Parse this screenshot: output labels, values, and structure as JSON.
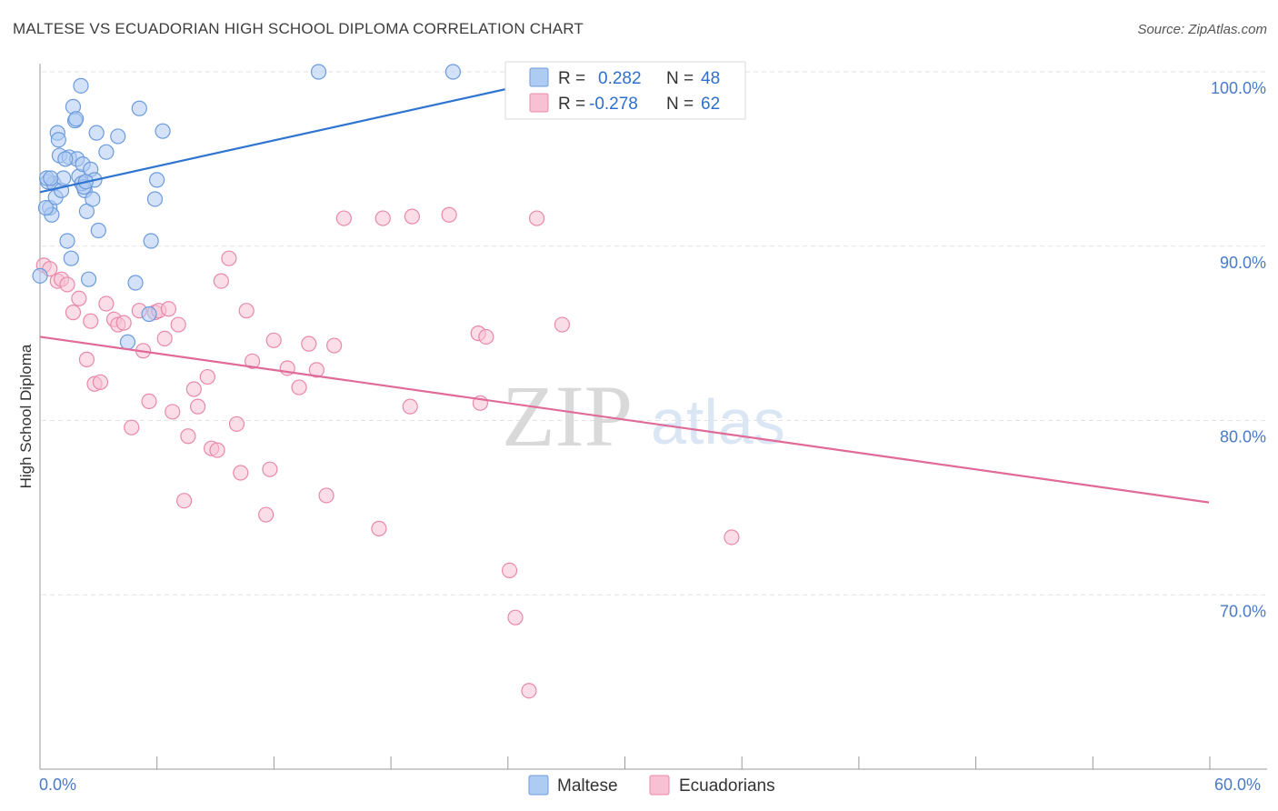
{
  "header": {
    "title": "MALTESE VS ECUADORIAN HIGH SCHOOL DIPLOMA CORRELATION CHART",
    "source": "Source: ZipAtlas.com"
  },
  "colors": {
    "maltese_fill": "#aecbf2",
    "maltese_stroke": "#6c9bdc",
    "maltese_line": "#2f74d0",
    "ecuadorian_fill": "#f7c1d3",
    "ecuadorian_stroke": "#e889a9",
    "ecuadorian_line": "#e06a98",
    "tick_label": "#4a7ac8"
  },
  "watermark": {
    "zip": "ZIP",
    "atlas": "atlas"
  },
  "chart_data": {
    "type": "scatter",
    "title": "MALTESE VS ECUADORIAN HIGH SCHOOL DIPLOMA CORRELATION CHART",
    "xlabel": "",
    "ylabel": "High School Diploma",
    "xlim": [
      0,
      60
    ],
    "ylim": [
      60,
      100
    ],
    "x_tick_labels": [
      "0.0%",
      "60.0%"
    ],
    "y_ticks": [
      {
        "value": 100,
        "label": "100.0%"
      },
      {
        "value": 90,
        "label": "90.0%"
      },
      {
        "value": 80,
        "label": "80.0%"
      },
      {
        "value": 70,
        "label": "70.0%"
      }
    ],
    "grid": true,
    "legend": [
      {
        "series": "Maltese",
        "r_label": "R =",
        "r": "0.282",
        "n_label": "N =",
        "n": "48"
      },
      {
        "series": "Ecuadorians",
        "r_label": "R =",
        "r": "-0.278",
        "n_label": "N =",
        "n": "62"
      }
    ],
    "series": [
      {
        "name": "Maltese",
        "trend": {
          "x0": 0.0,
          "y0": 93.1,
          "x1": 25.5,
          "y1": 99.4
        },
        "points": [
          [
            0.0,
            88.3
          ],
          [
            0.4,
            93.7
          ],
          [
            0.5,
            92.2
          ],
          [
            0.6,
            91.8
          ],
          [
            0.7,
            93.6
          ],
          [
            0.8,
            92.8
          ],
          [
            0.9,
            96.5
          ],
          [
            0.95,
            96.1
          ],
          [
            1.0,
            95.2
          ],
          [
            1.1,
            93.2
          ],
          [
            1.2,
            93.9
          ],
          [
            1.4,
            90.3
          ],
          [
            1.5,
            95.1
          ],
          [
            1.6,
            89.3
          ],
          [
            1.7,
            98.0
          ],
          [
            1.8,
            97.2
          ],
          [
            1.85,
            97.3
          ],
          [
            1.9,
            95.0
          ],
          [
            2.0,
            94.0
          ],
          [
            2.1,
            99.2
          ],
          [
            2.2,
            94.7
          ],
          [
            2.3,
            93.2
          ],
          [
            2.4,
            92.0
          ],
          [
            2.5,
            88.1
          ],
          [
            2.6,
            94.4
          ],
          [
            2.7,
            92.7
          ],
          [
            2.8,
            93.8
          ],
          [
            2.9,
            96.5
          ],
          [
            3.0,
            90.9
          ],
          [
            3.4,
            95.4
          ],
          [
            4.0,
            96.3
          ],
          [
            4.5,
            84.5
          ],
          [
            4.9,
            87.9
          ],
          [
            5.1,
            97.9
          ],
          [
            5.6,
            86.1
          ],
          [
            5.7,
            90.3
          ],
          [
            5.9,
            92.7
          ],
          [
            6.0,
            93.8
          ],
          [
            6.3,
            96.6
          ],
          [
            14.3,
            100.0
          ],
          [
            21.2,
            100.0
          ],
          [
            0.3,
            92.2
          ],
          [
            0.35,
            93.9
          ],
          [
            0.55,
            93.9
          ],
          [
            1.3,
            95.0
          ],
          [
            2.15,
            93.6
          ],
          [
            2.25,
            93.4
          ],
          [
            2.35,
            93.7
          ]
        ]
      },
      {
        "name": "Ecuadorians",
        "trend": {
          "x0": 0.0,
          "y0": 84.8,
          "x1": 60.0,
          "y1": 75.3
        },
        "points": [
          [
            0.2,
            88.9
          ],
          [
            0.5,
            88.7
          ],
          [
            0.9,
            88.0
          ],
          [
            1.1,
            88.1
          ],
          [
            1.4,
            87.8
          ],
          [
            1.7,
            86.2
          ],
          [
            2.0,
            87.0
          ],
          [
            2.4,
            83.5
          ],
          [
            2.6,
            85.7
          ],
          [
            2.8,
            82.1
          ],
          [
            3.1,
            82.2
          ],
          [
            3.4,
            86.7
          ],
          [
            3.8,
            85.8
          ],
          [
            4.0,
            85.5
          ],
          [
            4.3,
            85.6
          ],
          [
            4.7,
            79.6
          ],
          [
            5.1,
            86.3
          ],
          [
            5.3,
            84.0
          ],
          [
            5.6,
            81.1
          ],
          [
            5.9,
            86.2
          ],
          [
            6.1,
            86.3
          ],
          [
            6.4,
            84.7
          ],
          [
            6.6,
            86.4
          ],
          [
            6.8,
            80.5
          ],
          [
            7.1,
            85.5
          ],
          [
            7.4,
            75.4
          ],
          [
            7.6,
            79.1
          ],
          [
            7.9,
            81.8
          ],
          [
            8.1,
            80.8
          ],
          [
            8.6,
            82.5
          ],
          [
            8.8,
            78.4
          ],
          [
            9.1,
            78.3
          ],
          [
            9.3,
            88.0
          ],
          [
            9.7,
            89.3
          ],
          [
            10.1,
            79.8
          ],
          [
            10.3,
            77.0
          ],
          [
            10.6,
            86.3
          ],
          [
            10.9,
            83.4
          ],
          [
            11.6,
            74.6
          ],
          [
            11.8,
            77.2
          ],
          [
            12.0,
            84.6
          ],
          [
            12.7,
            83.0
          ],
          [
            13.3,
            81.9
          ],
          [
            13.8,
            84.4
          ],
          [
            14.2,
            82.9
          ],
          [
            14.7,
            75.7
          ],
          [
            15.1,
            84.3
          ],
          [
            15.6,
            91.6
          ],
          [
            17.4,
            73.8
          ],
          [
            17.6,
            91.6
          ],
          [
            19.0,
            80.8
          ],
          [
            19.1,
            91.7
          ],
          [
            21.0,
            91.8
          ],
          [
            22.5,
            85.0
          ],
          [
            22.6,
            81.0
          ],
          [
            22.9,
            84.8
          ],
          [
            24.1,
            71.4
          ],
          [
            24.4,
            68.7
          ],
          [
            25.1,
            64.5
          ],
          [
            25.5,
            91.6
          ],
          [
            26.8,
            85.5
          ],
          [
            35.5,
            73.3
          ]
        ]
      }
    ]
  },
  "legend_bottom": [
    {
      "label": "Maltese"
    },
    {
      "label": "Ecuadorians"
    }
  ]
}
